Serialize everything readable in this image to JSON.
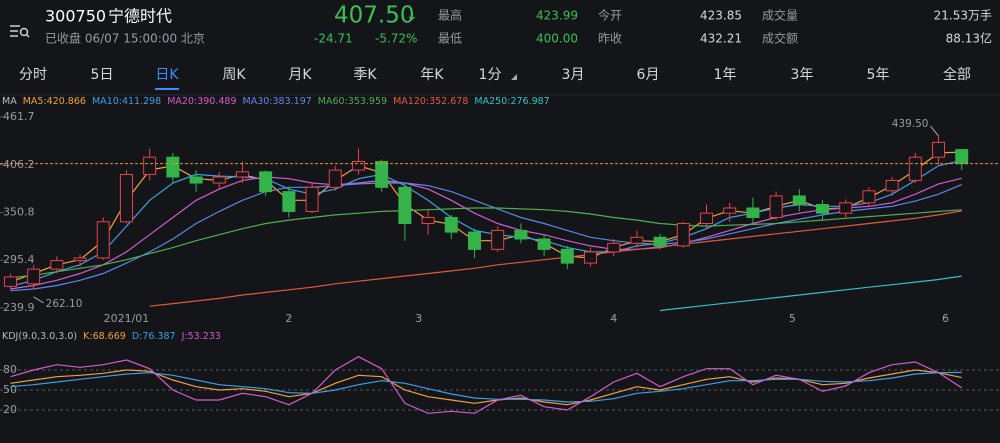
{
  "header": {
    "code": "300750",
    "name": "宁德时代",
    "price": "407.50",
    "arrow": "↓",
    "change": "-24.71",
    "change_pct": "-5.72%",
    "status": "已收盘 06/07 15:00:00 北京",
    "stats": [
      {
        "label": "最高",
        "value": "423.99"
      },
      {
        "label": "今开",
        "value": "423.85"
      },
      {
        "label": "成交量",
        "value": "21.53万手"
      },
      {
        "label": "最低",
        "value": "400.00"
      },
      {
        "label": "昨收",
        "value": "432.21"
      },
      {
        "label": "成交额",
        "value": "88.13亿"
      }
    ]
  },
  "tabs": [
    "分时",
    "5日",
    "日K",
    "周K",
    "月K",
    "季K",
    "年K",
    "1分",
    "3月",
    "6月",
    "1年",
    "3年",
    "5年",
    "全部"
  ],
  "active_tab": 2,
  "chart_data": [
    {
      "type": "candlestick",
      "indicator": "MA",
      "up_color": "#e8414b",
      "down_color": "#33b34a",
      "price_line_color": "#e8923a",
      "open": [
        265,
        268,
        285,
        295,
        298,
        340,
        395,
        415,
        392,
        385,
        392,
        398,
        375,
        352,
        380,
        400,
        410,
        380,
        338,
        345,
        328,
        308,
        330,
        320,
        308,
        292,
        305,
        315,
        322,
        312,
        338,
        350,
        356,
        345,
        370,
        360,
        350,
        362,
        376,
        388,
        415,
        423.85
      ],
      "high": [
        280,
        290,
        300,
        302,
        345,
        400,
        425,
        420,
        400,
        398,
        410,
        400,
        380,
        385,
        405,
        425,
        412,
        385,
        355,
        348,
        332,
        335,
        338,
        325,
        312,
        310,
        320,
        330,
        326,
        340,
        360,
        362,
        368,
        375,
        378,
        365,
        366,
        380,
        392,
        420,
        439.5,
        423.99
      ],
      "low": [
        262.1,
        262,
        280,
        288,
        296,
        338,
        388,
        385,
        375,
        378,
        385,
        370,
        345,
        350,
        376,
        395,
        375,
        318,
        325,
        320,
        298,
        305,
        315,
        300,
        285,
        288,
        300,
        310,
        308,
        310,
        332,
        340,
        338,
        342,
        352,
        342,
        345,
        358,
        370,
        385,
        405,
        400
      ],
      "close": [
        276,
        285,
        295,
        298,
        340,
        395,
        415,
        392,
        385,
        392,
        398,
        375,
        352,
        380,
        400,
        410,
        380,
        338,
        345,
        328,
        308,
        330,
        320,
        308,
        292,
        305,
        315,
        322,
        312,
        338,
        350,
        356,
        345,
        370,
        360,
        350,
        362,
        376,
        388,
        415,
        432.21,
        407.5
      ],
      "series": [
        {
          "name": "MA5:",
          "color": "#f0a03c",
          "values": [
            270,
            280,
            290,
            296,
            318,
            365,
            400,
            405,
            390,
            388,
            395,
            388,
            365,
            365,
            388,
            405,
            397,
            360,
            342,
            337,
            318,
            318,
            325,
            315,
            300,
            298,
            310,
            318,
            317,
            325,
            344,
            353,
            350,
            358,
            365,
            355,
            356,
            368,
            382,
            400,
            420,
            420.866
          ]
        },
        {
          "name": "MA10:",
          "color": "#3c9fe6",
          "values": [
            265,
            272,
            282,
            290,
            305,
            335,
            365,
            385,
            395,
            393,
            392,
            390,
            378,
            372,
            378,
            390,
            395,
            382,
            365,
            345,
            330,
            325,
            322,
            318,
            310,
            305,
            305,
            312,
            315,
            322,
            332,
            345,
            350,
            356,
            360,
            358,
            358,
            362,
            372,
            388,
            405,
            411.298
          ]
        },
        {
          "name": "MA20:",
          "color": "#d35ccd",
          "values": [
            262,
            266,
            272,
            280,
            290,
            305,
            325,
            345,
            365,
            378,
            388,
            392,
            390,
            385,
            383,
            385,
            388,
            385,
            378,
            365,
            350,
            338,
            330,
            325,
            318,
            312,
            308,
            308,
            310,
            315,
            322,
            330,
            338,
            345,
            350,
            354,
            356,
            358,
            362,
            372,
            384,
            390.489
          ]
        },
        {
          "name": "MA30:",
          "color": "#5d86e8",
          "values": [
            260,
            262,
            266,
            272,
            280,
            292,
            305,
            320,
            338,
            352,
            365,
            375,
            380,
            380,
            382,
            384,
            385,
            385,
            382,
            375,
            365,
            355,
            345,
            338,
            330,
            322,
            318,
            315,
            314,
            316,
            320,
            326,
            332,
            338,
            343,
            348,
            352,
            355,
            358,
            364,
            372,
            383.197
          ]
        },
        {
          "name": "MA60:",
          "color": "#4fae52",
          "values": [
            275,
            278,
            282,
            286,
            290,
            296,
            303,
            310,
            318,
            325,
            332,
            338,
            342,
            345,
            348,
            350,
            352,
            353,
            354,
            355,
            356,
            356,
            355,
            354,
            352,
            349,
            345,
            342,
            338,
            336,
            335,
            336,
            337,
            338,
            340,
            342,
            344,
            346,
            348,
            350,
            352,
            353.959
          ]
        },
        {
          "name": "MA120:",
          "color": "#e2573e",
          "values": [
            null,
            null,
            null,
            null,
            null,
            null,
            242,
            245,
            248,
            251,
            255,
            258,
            261,
            264,
            268,
            271,
            274,
            277,
            280,
            283,
            286,
            290,
            293,
            296,
            299,
            302,
            305,
            308,
            311,
            314,
            317,
            320,
            323,
            326,
            329,
            332,
            335,
            338,
            341,
            344,
            348,
            352.678
          ]
        },
        {
          "name": "MA250:",
          "color": "#2fc3c6",
          "values": [
            null,
            null,
            null,
            null,
            null,
            null,
            null,
            null,
            null,
            null,
            null,
            null,
            null,
            null,
            null,
            null,
            null,
            null,
            null,
            null,
            null,
            null,
            null,
            null,
            null,
            null,
            null,
            null,
            237,
            240,
            243,
            246,
            249,
            252,
            255,
            258,
            261,
            264,
            267,
            270,
            273,
            276.987
          ]
        }
      ],
      "ylim": [
        230.6,
        469.8
      ],
      "yticks": [
        461.7,
        406.2,
        350.8,
        295.4,
        239.9
      ],
      "xlim": [
        -0.45,
        42.65
      ],
      "xticks": [
        {
          "value": 5,
          "label": "2021/01"
        },
        {
          "value": 12,
          "label": "2"
        },
        {
          "value": 17.6,
          "label": "3"
        },
        {
          "value": 26,
          "label": "4"
        },
        {
          "value": 33.7,
          "label": "5"
        },
        {
          "value": 40.3,
          "label": "6"
        }
      ],
      "annotations": [
        {
          "text": "439.50"
        },
        {
          "text": "262.10"
        }
      ]
    },
    {
      "type": "line",
      "indicator": "KDJ(9.0,3.0,3.0)",
      "series": [
        {
          "name": "K:",
          "color": "#f0a03c",
          "values": [
            60,
            65,
            70,
            72,
            75,
            80,
            78,
            65,
            55,
            50,
            52,
            48,
            40,
            45,
            60,
            72,
            70,
            50,
            40,
            35,
            30,
            35,
            38,
            32,
            28,
            35,
            45,
            55,
            50,
            58,
            66,
            70,
            62,
            68,
            66,
            58,
            60,
            68,
            74,
            80,
            76,
            68.669
          ]
        },
        {
          "name": "D:",
          "color": "#3c9fe6",
          "values": [
            55,
            58,
            62,
            66,
            70,
            74,
            76,
            72,
            65,
            58,
            55,
            52,
            46,
            45,
            50,
            58,
            64,
            60,
            52,
            44,
            38,
            36,
            36,
            35,
            32,
            33,
            37,
            45,
            48,
            52,
            58,
            64,
            64,
            66,
            66,
            63,
            62,
            64,
            68,
            74,
            76,
            76.387
          ]
        },
        {
          "name": "J:",
          "color": "#d35ccd",
          "values": [
            70,
            80,
            88,
            84,
            88,
            95,
            82,
            50,
            35,
            35,
            45,
            40,
            28,
            45,
            80,
            100,
            82,
            30,
            15,
            18,
            15,
            35,
            42,
            25,
            20,
            40,
            62,
            75,
            55,
            70,
            82,
            82,
            58,
            72,
            66,
            48,
            56,
            76,
            88,
            92,
            76,
            53.233
          ]
        }
      ],
      "ylim": [
        -13,
        125
      ],
      "yticks": [
        80,
        50,
        20
      ],
      "xlim": [
        -0.45,
        42.65
      ],
      "grid": "dashed"
    }
  ]
}
